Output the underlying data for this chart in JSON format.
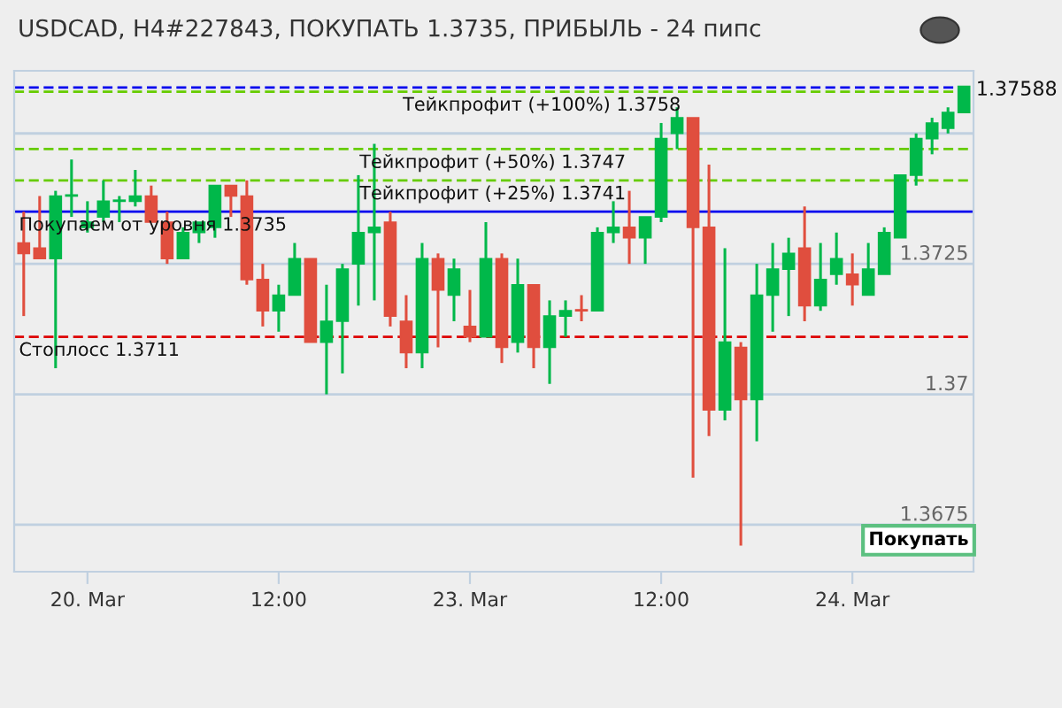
{
  "chart_data": {
    "type": "candlestick",
    "title": "USDCAD, H4#227843, ПОКУПАТЬ 1.3735, ПРИБЫЛЬ - 24 пипс",
    "categories": [
      null,
      null,
      null,
      null,
      "20. Mar",
      null,
      null,
      null,
      null,
      null,
      null,
      null,
      null,
      null,
      null,
      null,
      "12:00",
      null,
      null,
      null,
      null,
      null,
      null,
      null,
      null,
      null,
      null,
      null,
      "23. Mar",
      null,
      null,
      null,
      null,
      null,
      null,
      null,
      null,
      null,
      null,
      null,
      "12:00",
      null,
      null,
      null,
      null,
      null,
      null,
      null,
      null,
      null,
      null,
      null,
      "24. Mar",
      null,
      null,
      null,
      null,
      null,
      null,
      null
    ],
    "ohlc": [
      [
        1.3729,
        1.3735,
        1.3715,
        1.3727
      ],
      [
        1.3728,
        1.3738,
        1.3726,
        1.3726
      ],
      [
        1.3726,
        1.3739,
        1.3705,
        1.3738
      ],
      [
        1.3738,
        1.3745,
        1.3734,
        1.3738
      ],
      [
        1.3732,
        1.3737,
        1.3731,
        1.3733
      ],
      [
        1.3734,
        1.3741,
        1.3733,
        1.3737
      ],
      [
        1.3737,
        1.3738,
        1.3733,
        1.3737
      ],
      [
        1.3737,
        1.3743,
        1.3736,
        1.3738
      ],
      [
        1.3738,
        1.374,
        1.3733,
        1.3733
      ],
      [
        1.3733,
        1.3735,
        1.3725,
        1.3726
      ],
      [
        1.3726,
        1.3732,
        1.3726,
        1.3731
      ],
      [
        1.3731,
        1.3733,
        1.3729,
        1.3733
      ],
      [
        1.3732,
        1.374,
        1.373,
        1.374
      ],
      [
        1.374,
        1.374,
        1.3734,
        1.3738
      ],
      [
        1.3738,
        1.3741,
        1.3721,
        1.3722
      ],
      [
        1.3722,
        1.3725,
        1.3713,
        1.3716
      ],
      [
        1.3716,
        1.3721,
        1.3712,
        1.3719
      ],
      [
        1.3719,
        1.3729,
        1.3719,
        1.3726
      ],
      [
        1.3726,
        1.3726,
        1.371,
        1.371
      ],
      [
        1.371,
        1.3721,
        1.37,
        1.3714
      ],
      [
        1.3714,
        1.3725,
        1.3704,
        1.3724
      ],
      [
        1.3725,
        1.3742,
        1.3717,
        1.3731
      ],
      [
        1.3731,
        1.3748,
        1.3718,
        1.3732
      ],
      [
        1.3733,
        1.3735,
        1.3713,
        1.3715
      ],
      [
        1.3714,
        1.3719,
        1.3705,
        1.3708
      ],
      [
        1.3708,
        1.3729,
        1.3705,
        1.3726
      ],
      [
        1.3726,
        1.3727,
        1.3709,
        1.372
      ],
      [
        1.3719,
        1.3726,
        1.3714,
        1.3724
      ],
      [
        1.3713,
        1.372,
        1.371,
        1.3711
      ],
      [
        1.3711,
        1.3733,
        1.3711,
        1.3726
      ],
      [
        1.3726,
        1.3727,
        1.3706,
        1.3709
      ],
      [
        1.371,
        1.3726,
        1.3708,
        1.3721
      ],
      [
        1.3721,
        1.3721,
        1.3705,
        1.3709
      ],
      [
        1.3709,
        1.3718,
        1.3702,
        1.3715
      ],
      [
        1.3715,
        1.3718,
        1.3711,
        1.3716
      ],
      [
        1.3716,
        1.3719,
        1.3714,
        1.3716
      ],
      [
        1.3716,
        1.3732,
        1.3716,
        1.3731
      ],
      [
        1.3731,
        1.3737,
        1.3729,
        1.3732
      ],
      [
        1.3732,
        1.3739,
        1.3725,
        1.373
      ],
      [
        1.373,
        1.3734,
        1.3725,
        1.3734
      ],
      [
        1.3734,
        1.3752,
        1.3733,
        1.3749
      ],
      [
        1.375,
        1.3755,
        1.3747,
        1.3753
      ],
      [
        1.3753,
        1.3753,
        1.3684,
        1.3732
      ],
      [
        1.3732,
        1.3744,
        1.3692,
        1.3697
      ],
      [
        1.3697,
        1.3728,
        1.3695,
        1.371
      ],
      [
        1.3709,
        1.371,
        1.3671,
        1.3699
      ],
      [
        1.3699,
        1.3725,
        1.3691,
        1.3719
      ],
      [
        1.3719,
        1.3729,
        1.3712,
        1.3724
      ],
      [
        1.3724,
        1.373,
        1.3715,
        1.3727
      ],
      [
        1.3728,
        1.3736,
        1.3714,
        1.3717
      ],
      [
        1.3717,
        1.3729,
        1.3716,
        1.3722
      ],
      [
        1.3723,
        1.3731,
        1.3721,
        1.3726
      ],
      [
        1.3723,
        1.3727,
        1.3717,
        1.3721
      ],
      [
        1.3719,
        1.3729,
        1.3719,
        1.3724
      ],
      [
        1.3723,
        1.3732,
        1.3723,
        1.3731
      ],
      [
        1.373,
        1.3742,
        1.373,
        1.3742
      ],
      [
        1.3742,
        1.375,
        1.374,
        1.3749
      ],
      [
        1.3749,
        1.3753,
        1.3746,
        1.3752
      ],
      [
        1.3751,
        1.3755,
        1.375,
        1.3754
      ],
      [
        1.3754,
        1.3759,
        1.3754,
        1.3759
      ]
    ],
    "colors": [
      "#e04e3e",
      "#e04e3e",
      "#00b84a",
      "#00b84a",
      "#00b84a",
      "#00b84a",
      "#00b84a",
      "#00b84a",
      "#e04e3e",
      "#e04e3e",
      "#00b84a",
      "#00b84a",
      "#00b84a",
      "#e04e3e",
      "#e04e3e",
      "#e04e3e",
      "#00b84a",
      "#00b84a",
      "#e04e3e",
      "#00b84a",
      "#00b84a",
      "#00b84a",
      "#00b84a",
      "#e04e3e",
      "#e04e3e",
      "#00b84a",
      "#e04e3e",
      "#00b84a",
      "#e04e3e",
      "#00b84a",
      "#e04e3e",
      "#00b84a",
      "#e04e3e",
      "#00b84a",
      "#00b84a",
      "#e04e3e",
      "#00b84a",
      "#00b84a",
      "#e04e3e",
      "#00b84a",
      "#00b84a",
      "#00b84a",
      "#e04e3e",
      "#e04e3e",
      "#00b84a",
      "#e04e3e",
      "#00b84a",
      "#00b84a",
      "#00b84a",
      "#e04e3e",
      "#00b84a",
      "#00b84a",
      "#e04e3e",
      "#00b84a",
      "#00b84a",
      "#00b84a",
      "#00b84a",
      "#00b84a",
      "#00b84a",
      "#00b84a"
    ],
    "ylim": [
      1.3666,
      1.3762
    ],
    "yticks": [
      {
        "value": 1.3675,
        "label": "1.3675"
      },
      {
        "value": 1.37,
        "label": "1.37"
      },
      {
        "value": 1.3725,
        "label": "1.3725"
      },
      {
        "value": 1.375,
        "label": null
      }
    ],
    "grid": "y",
    "ref_lines": [
      {
        "axis": "y",
        "value": 1.37588,
        "label": "1.37588",
        "color": "#0000ee",
        "line_style": "dashed"
      },
      {
        "axis": "y",
        "value": 1.3758,
        "label": "Тейкпрофит (+100%) 1.3758",
        "color": "#66cc00",
        "line_style": "dashed"
      },
      {
        "axis": "y",
        "value": 1.3747,
        "label": "Тейкпрофит (+50%) 1.3747",
        "color": "#66cc00",
        "line_style": "dashed"
      },
      {
        "axis": "y",
        "value": 1.3741,
        "label": "Тейкпрофит (+25%) 1.3741",
        "color": "#66cc00",
        "line_style": "dashed"
      },
      {
        "axis": "y",
        "value": 1.3735,
        "label": "Покупаем от уровня 1.3735",
        "color": "#0000ee",
        "line_style": "solid"
      },
      {
        "axis": "y",
        "value": 1.3711,
        "label": "Стоплосс 1.3711",
        "color": "#dd0000",
        "line_style": "dashed"
      }
    ],
    "annotations": [
      "Покупать"
    ]
  }
}
